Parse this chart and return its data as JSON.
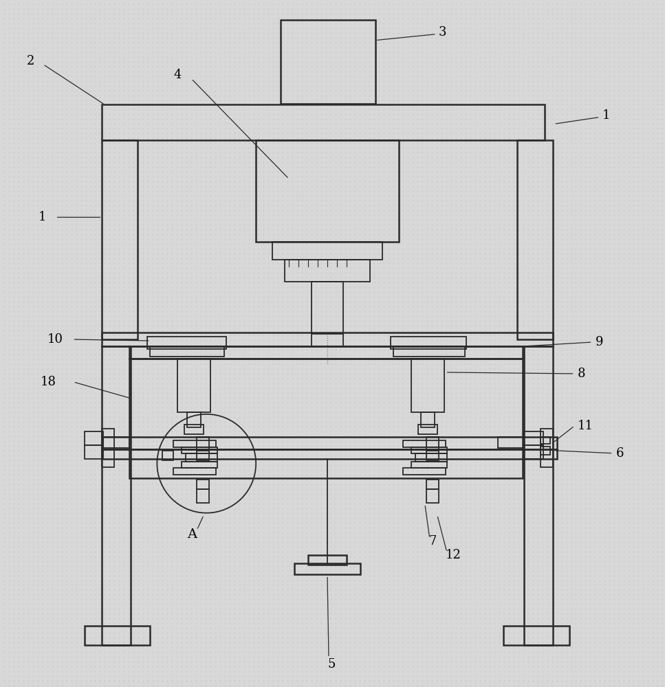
{
  "bg_color": "#d8d8d8",
  "line_color": "#2a2a2a",
  "fig_width": 9.67,
  "fig_height": 10.0
}
